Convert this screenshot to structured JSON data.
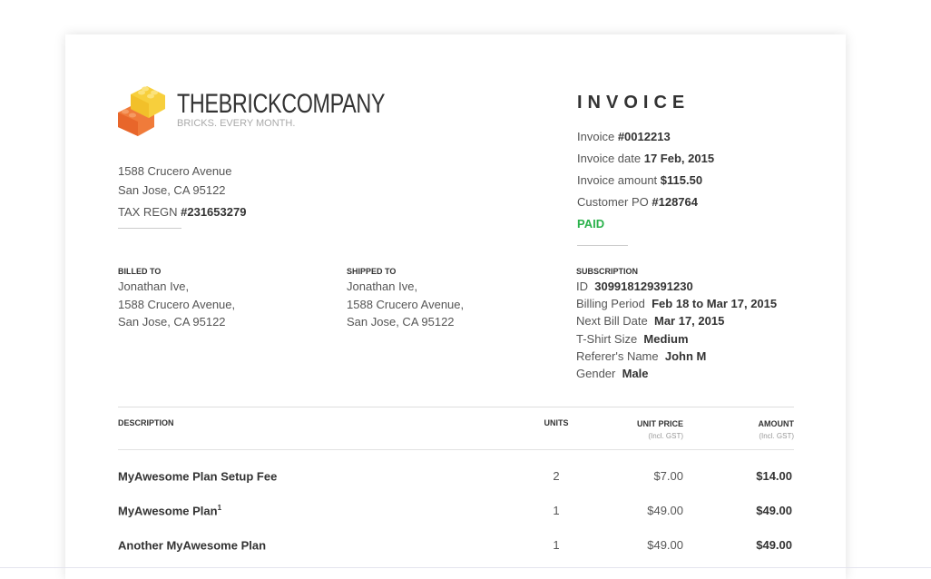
{
  "company": {
    "name": "THEBRICKCOMPANY",
    "tagline": "BRICKS. EVERY MONTH.",
    "address": [
      "1588 Crucero Avenue",
      "San Jose, CA 95122"
    ],
    "tax_label": "TAX REGN",
    "tax_value": "#231653279",
    "logo": "lego-bricks-icon"
  },
  "invoice": {
    "title": "INVOICE",
    "rows": [
      {
        "label": "Invoice",
        "value": "#0012213"
      },
      {
        "label": "Invoice date",
        "value": "17 Feb, 2015"
      },
      {
        "label": "Invoice amount",
        "value": "$115.50"
      },
      {
        "label": "Customer PO",
        "value": "#128764"
      }
    ],
    "status": "PAID",
    "status_color": "#2bb24c"
  },
  "billed_to": {
    "label": "BILLED TO",
    "lines": [
      "Jonathan Ive,",
      "1588 Crucero Avenue,",
      "San Jose, CA 95122"
    ]
  },
  "shipped_to": {
    "label": "SHIPPED TO",
    "lines": [
      "Jonathan Ive,",
      "1588 Crucero Avenue,",
      "San Jose, CA 95122"
    ]
  },
  "subscription": {
    "label": "SUBSCRIPTION",
    "rows": [
      {
        "label": "ID",
        "value": "309918129391230"
      },
      {
        "label": "Billing Period",
        "value": "Feb 18 to Mar 17, 2015"
      },
      {
        "label": "Next Bill Date",
        "value": "Mar 17, 2015"
      },
      {
        "label": "T-Shirt Size",
        "value": "Medium"
      },
      {
        "label": "Referer's Name",
        "value": "John M"
      },
      {
        "label": "Gender",
        "value": "Male"
      }
    ]
  },
  "table": {
    "headers": {
      "description": "DESCRIPTION",
      "units": "UNITS",
      "unit_price": "UNIT PRICE",
      "unit_price_sub": "(Incl. GST)",
      "amount": "AMOUNT",
      "amount_sub": "(Incl. GST)"
    },
    "rows": [
      {
        "description": "MyAwesome Plan Setup Fee",
        "sup": "",
        "units": "2",
        "unit_price": "$7.00",
        "amount": "$14.00"
      },
      {
        "description": "MyAwesome Plan",
        "sup": "1",
        "units": "1",
        "unit_price": "$49.00",
        "amount": "$49.00"
      },
      {
        "description": "Another MyAwesome Plan",
        "sup": "",
        "units": "1",
        "unit_price": "$49.00",
        "amount": "$49.00"
      }
    ]
  }
}
